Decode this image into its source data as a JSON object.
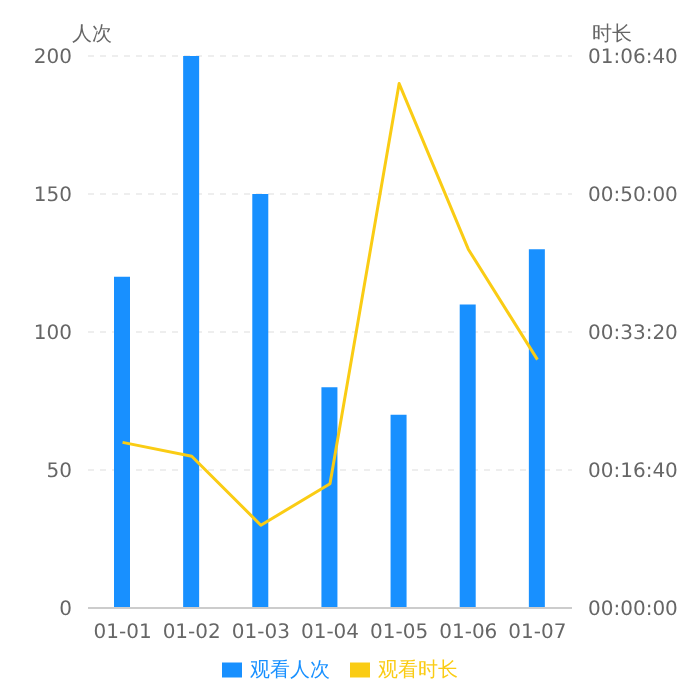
{
  "chart_data": {
    "type": "bar",
    "ylabel": "人次",
    "y2label": "时长",
    "categories": [
      "01-01",
      "01-02",
      "01-03",
      "01-04",
      "01-05",
      "01-06",
      "01-07"
    ],
    "series": [
      {
        "name": "观看人次",
        "color": "#1890ff",
        "values": [
          120,
          200,
          150,
          80,
          70,
          110,
          130
        ]
      },
      {
        "name": "观看时长",
        "type": "line",
        "axis": "y2",
        "color": "#facc14",
        "values": [
          1200,
          1100,
          600,
          900,
          3800,
          2600,
          1800
        ]
      }
    ],
    "ylim": [
      0,
      200
    ],
    "yticks": [
      0,
      50,
      100,
      150,
      200
    ],
    "y2lim": [
      0,
      4000
    ],
    "y2ticks": [
      {
        "value": 0,
        "label": "00:00:00"
      },
      {
        "value": 1000,
        "label": "00:16:40"
      },
      {
        "value": 2000,
        "label": "00:33:20"
      },
      {
        "value": 3000,
        "label": "00:50:00"
      },
      {
        "value": 4000,
        "label": "01:06:40"
      }
    ],
    "grid": "y",
    "legend": "bottom",
    "marker": "none",
    "line_style": "solid"
  }
}
